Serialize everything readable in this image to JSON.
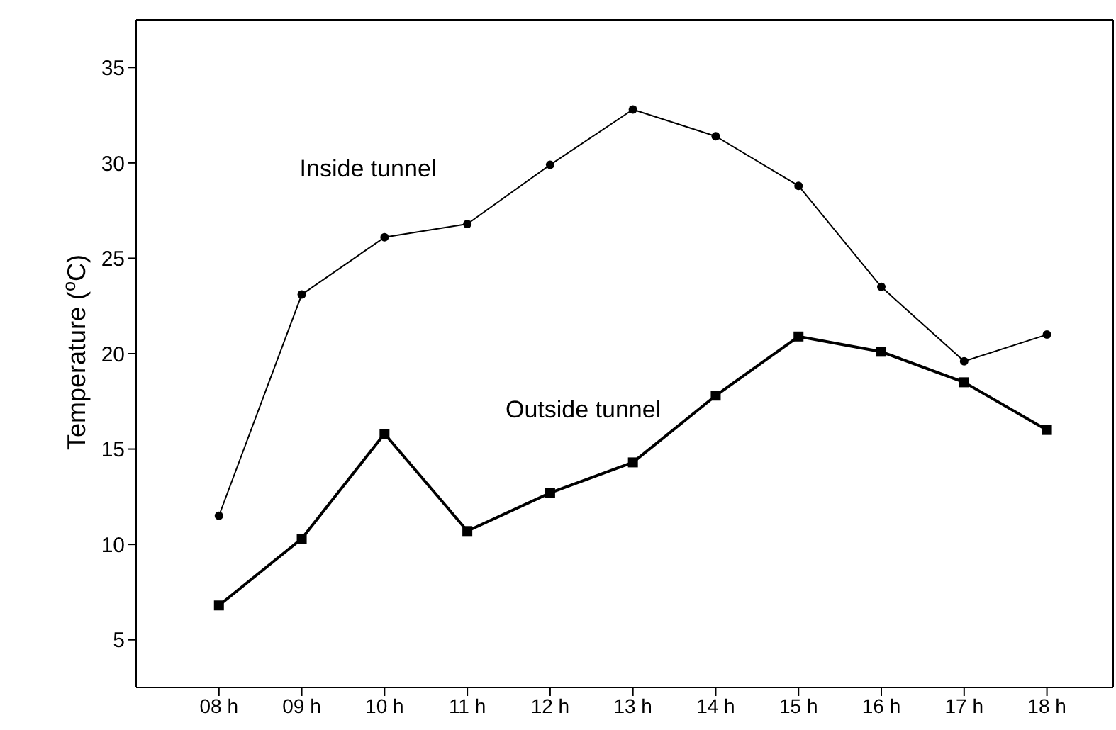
{
  "chart_data": {
    "type": "line",
    "ylabel": "Temperature ($^{o}$C)",
    "categories": [
      "08 h",
      "09 h",
      "10 h",
      "11 h",
      "12 h",
      "13 h",
      "14 h",
      "15 h",
      "16 h",
      "17 h",
      "18 h"
    ],
    "series": [
      {
        "name": "Inside tunnel",
        "color": "#000000",
        "marker": "circle",
        "values": [
          11.5,
          23.1,
          26.1,
          26.8,
          29.9,
          32.8,
          31.4,
          28.8,
          23.5,
          19.6,
          21.0
        ]
      },
      {
        "name": "Outside tunnel",
        "color": "#000000",
        "marker": "square",
        "values": [
          6.8,
          10.3,
          15.8,
          10.7,
          12.7,
          14.3,
          17.8,
          20.9,
          20.1,
          18.5,
          16.0
        ]
      }
    ],
    "ylim": [
      2.5,
      37.5
    ],
    "yticks": [
      5,
      10,
      15,
      20,
      25,
      30,
      35
    ],
    "line_style": "solid"
  }
}
